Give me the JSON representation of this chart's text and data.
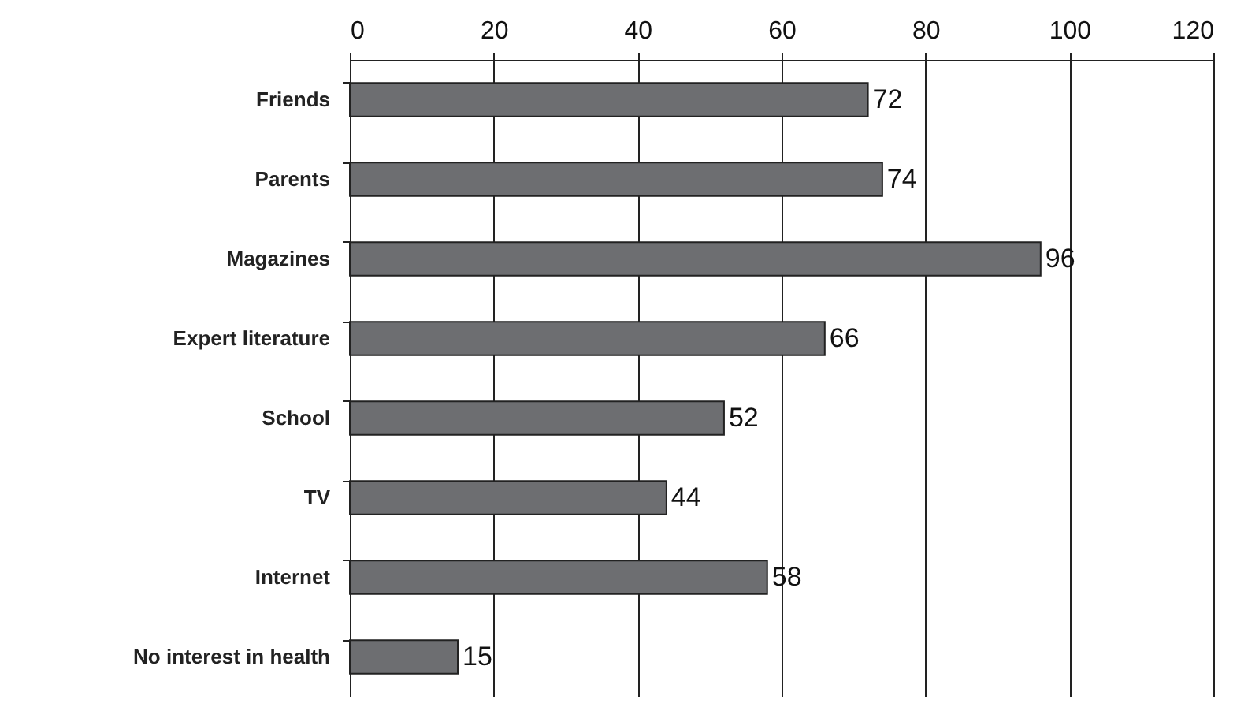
{
  "chart_data": {
    "type": "bar",
    "orientation": "horizontal",
    "categories": [
      "Friends",
      "Parents",
      "Magazines",
      "Expert literature",
      "School",
      "TV",
      "Internet",
      "No interest in health"
    ],
    "values": [
      72,
      74,
      96,
      66,
      52,
      44,
      58,
      15
    ],
    "color": "#6d6e71",
    "xlim": [
      0,
      120
    ],
    "xticks": [
      0,
      20,
      40,
      60,
      80,
      100,
      120
    ],
    "grid": "x",
    "data_labels": true
  }
}
